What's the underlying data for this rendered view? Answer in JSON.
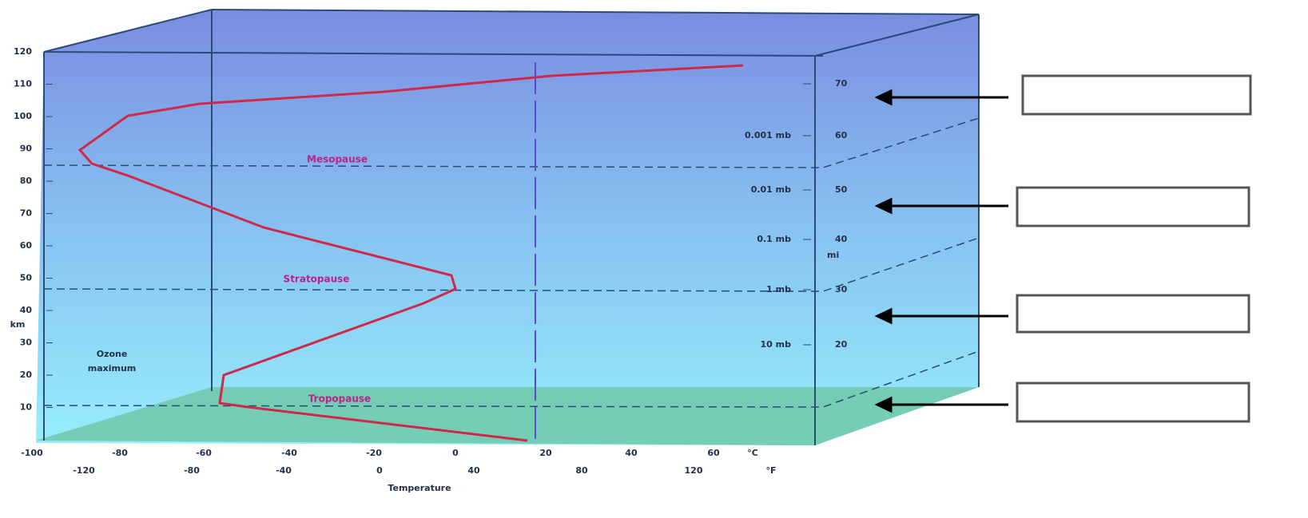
{
  "axis_left": {
    "unit": "km",
    "ticks": [
      "120",
      "110",
      "100",
      "90",
      "80",
      "70",
      "60",
      "50",
      "40",
      "30",
      "20",
      "10"
    ]
  },
  "axis_right": {
    "unit": "mi",
    "ticks": [
      "70",
      "60",
      "50",
      "40",
      "30",
      "20"
    ],
    "pressure": [
      "0.001 mb",
      "0.01 mb",
      "0.1 mb",
      "1 mb",
      "10 mb"
    ]
  },
  "axis_bottom": {
    "celsius": [
      "-100",
      "-80",
      "-60",
      "-40",
      "-20",
      "0",
      "20",
      "40",
      "60"
    ],
    "celsius_unit": "°C",
    "fahrenheit": [
      "-120",
      "-80",
      "-40",
      "0",
      "40",
      "80",
      "120"
    ],
    "fahrenheit_unit": "°F",
    "title": "Temperature"
  },
  "labels": {
    "mesopause": "Mesopause",
    "stratopause": "Stratopause",
    "tropopause": "Tropopause",
    "ozone": [
      "Ozone",
      "maximum"
    ]
  }
}
